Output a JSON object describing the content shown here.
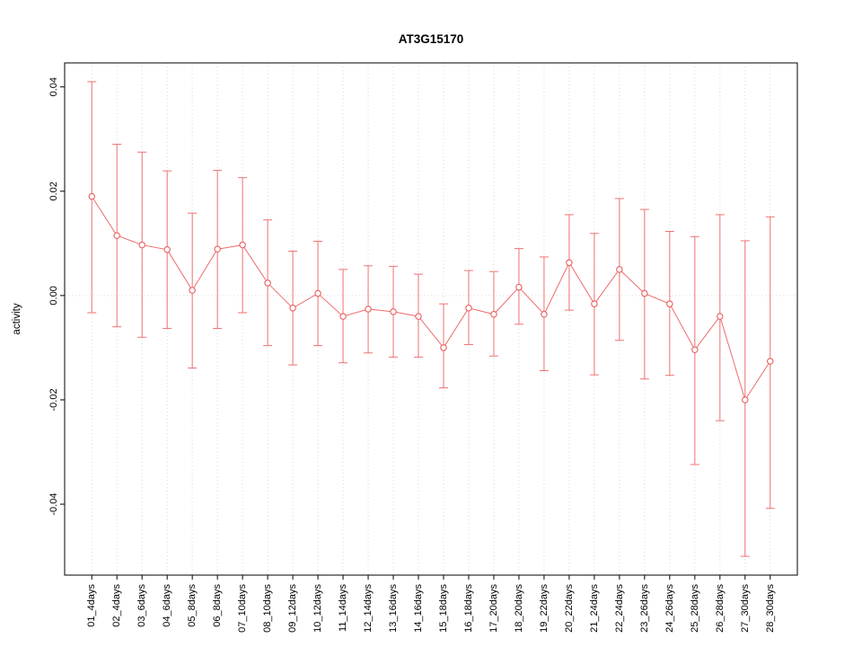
{
  "chart_data": {
    "type": "line",
    "title": "AT3G15170",
    "xlabel": "",
    "ylabel": "activity",
    "ylim": [
      -0.0536,
      0.0446
    ],
    "yticks": [
      -0.04,
      -0.02,
      0.0,
      0.02,
      0.04
    ],
    "legend": "none",
    "grid": {
      "vertical_dotted_per_category": true,
      "horizontal_dotted_at_zero": true
    },
    "marker": "open-circle",
    "error_bars": true,
    "categories": [
      "01_4days",
      "02_4days",
      "03_6days",
      "04_6days",
      "05_8days",
      "06_8days",
      "07_10days",
      "08_10days",
      "09_12days",
      "10_12days",
      "11_14days",
      "12_14days",
      "13_16days",
      "14_16days",
      "15_18days",
      "16_18days",
      "17_20days",
      "18_20days",
      "19_22days",
      "20_22days",
      "21_24days",
      "22_24days",
      "23_26days",
      "24_26days",
      "25_28days",
      "26_28days",
      "27_30days",
      "28_30days"
    ],
    "series": [
      {
        "name": "AT3G15170 activity",
        "values": [
          0.019,
          0.0115,
          0.0097,
          0.0088,
          0.001,
          0.0089,
          0.0097,
          0.0024,
          -0.0024,
          0.0004,
          -0.004,
          -0.0026,
          -0.0031,
          -0.004,
          -0.01,
          -0.0024,
          -0.0036,
          0.0016,
          -0.0036,
          0.0063,
          -0.0016,
          0.005,
          0.0004,
          -0.0016,
          -0.0104,
          -0.004,
          -0.02,
          -0.0126
        ],
        "error_high": [
          0.041,
          0.029,
          0.0275,
          0.0239,
          0.0158,
          0.024,
          0.0226,
          0.0145,
          0.0085,
          0.0104,
          0.005,
          0.0057,
          0.0056,
          0.0041,
          -0.0016,
          0.0048,
          0.0046,
          0.009,
          0.0074,
          0.0155,
          0.0119,
          0.0186,
          0.0165,
          0.0123,
          0.0113,
          0.0155,
          0.0105,
          0.0151
        ],
        "error_low": [
          -0.0033,
          -0.006,
          -0.008,
          -0.0063,
          -0.0139,
          -0.0063,
          -0.0033,
          -0.0096,
          -0.0133,
          -0.0096,
          -0.0129,
          -0.011,
          -0.0118,
          -0.0118,
          -0.0177,
          -0.0094,
          -0.0116,
          -0.0055,
          -0.0144,
          -0.0028,
          -0.0152,
          -0.0086,
          -0.016,
          -0.0153,
          -0.0324,
          -0.024,
          -0.05,
          -0.0408
        ]
      }
    ],
    "colors": {
      "line": "#ee6a6a",
      "point": "#e85f5f",
      "error": "#ee7272",
      "grid": "#d9d9d9",
      "axis": "#000000",
      "background": "#ffffff"
    }
  }
}
